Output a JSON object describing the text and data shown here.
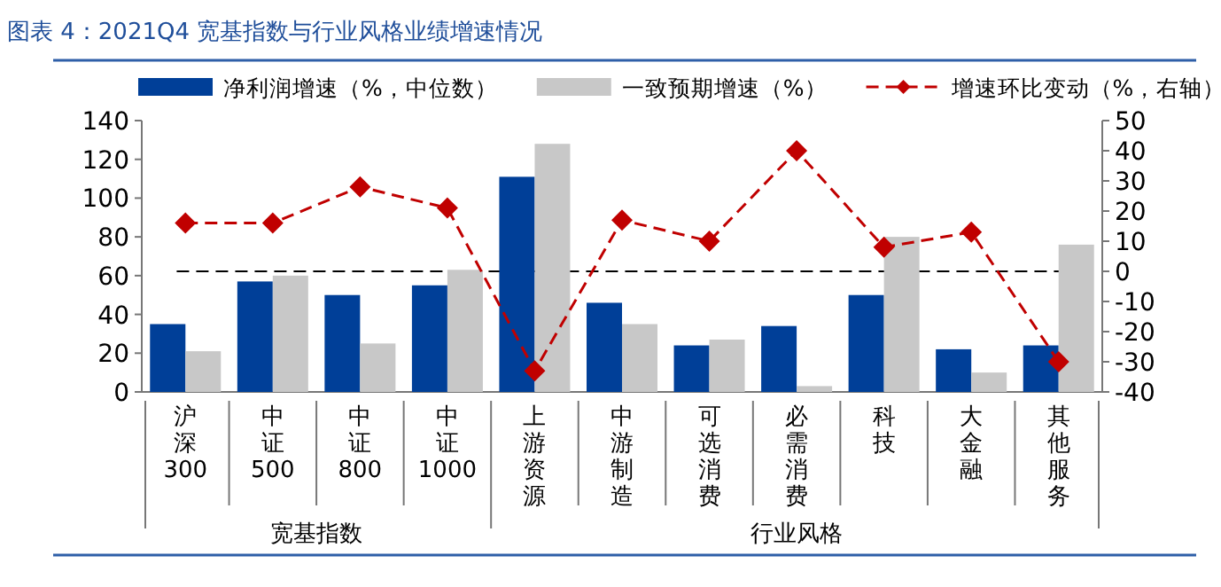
{
  "chart_data": {
    "type": "bar",
    "title": "图表 4：2021Q4 宽基指数与行业风格业绩增速情况",
    "categories": [
      "沪深300",
      "中证500",
      "中证800",
      "中证1000",
      "上游资源",
      "中游制造",
      "可选消费",
      "必需消费",
      "科技",
      "大金融",
      "其他服务"
    ],
    "series": [
      {
        "name": "净利润增速（%，中位数）",
        "color": "#003f98",
        "values": [
          35,
          57,
          50,
          55,
          111,
          46,
          24,
          34,
          50,
          22,
          24
        ]
      },
      {
        "name": "一致预期增速（%）",
        "color": "#c8c8c8",
        "values": [
          21,
          60,
          25,
          63,
          128,
          35,
          27,
          3,
          80,
          10,
          76
        ]
      },
      {
        "name": "增速环比变动（%，右轴）",
        "color": "#c00000",
        "type": "line",
        "axis": "y2",
        "marker": "diamond",
        "line_style": "dashed",
        "values": [
          16,
          16,
          28,
          21,
          -33,
          17,
          10,
          40,
          8,
          13,
          -30
        ]
      }
    ],
    "ylim": [
      0,
      140
    ],
    "yticks": [
      0,
      20,
      40,
      60,
      80,
      100,
      120,
      140
    ],
    "y2lim": [
      -40,
      50
    ],
    "y2ticks": [
      -40,
      -30,
      -20,
      -10,
      0,
      10,
      20,
      30,
      40,
      50
    ],
    "ref_lines": [
      {
        "axis": "y2",
        "value": 0,
        "color": "#000000",
        "line_style": "dashed"
      }
    ],
    "annotations": [
      "宽基指数",
      "行业风格"
    ],
    "legend": "top"
  }
}
